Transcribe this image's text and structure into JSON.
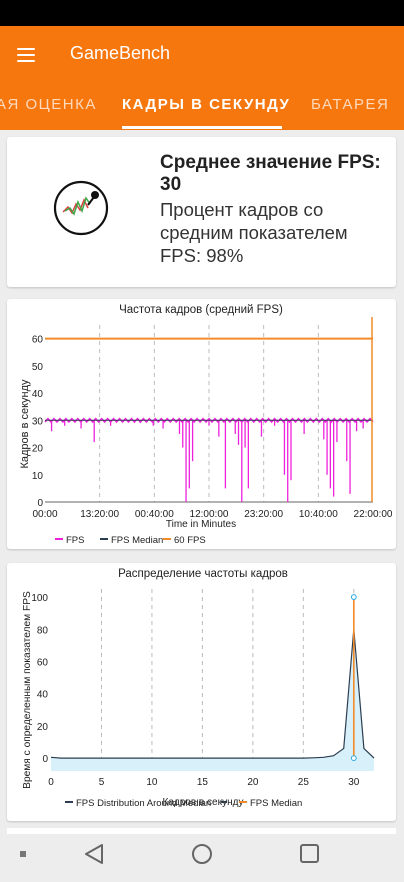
{
  "app": {
    "title": "GameBench"
  },
  "tabs": [
    {
      "label": "АЯ ОЦЕНКА"
    },
    {
      "label": "КАДРЫ В СЕКУНДУ",
      "active": true
    },
    {
      "label": "БАТАРЕЯ"
    }
  ],
  "summary": {
    "title": "Среднее значение FPS: 30",
    "text": "Процент кадров со средним показателем FPS: 98%"
  },
  "icons": {
    "menu": "menu-icon",
    "logo": "gamebench-logo-icon",
    "nav": [
      "recents-square-icon",
      "back-triangle-icon",
      "home-circle-icon",
      "overview-square-icon"
    ]
  },
  "colors": {
    "accent": "#f7770f",
    "fps": "#ee22dd",
    "median": "#2c3e50",
    "fps60": "#f28c28",
    "distribution_fill": "#d7f0fa"
  },
  "chart_data": [
    {
      "type": "line",
      "title": "Частота кадров (средний FPS)",
      "xlabel": "Time in Minutes",
      "ylabel": "Кадров в секунду",
      "x_tick_labels": [
        "00:00",
        "13:20:00",
        "00:40:00",
        "12:00:00",
        "23:20:00",
        "10:40:00",
        "22:00:00"
      ],
      "y_ticks": [
        0,
        10,
        20,
        30,
        40,
        50,
        60
      ],
      "ylim": [
        0,
        65
      ],
      "grid": true,
      "legend_position": "bottom",
      "series": [
        {
          "name": "FPS",
          "baseline": 30,
          "dips": [
            {
              "x": 0.02,
              "y": 26
            },
            {
              "x": 0.06,
              "y": 28
            },
            {
              "x": 0.11,
              "y": 27
            },
            {
              "x": 0.15,
              "y": 22
            },
            {
              "x": 0.2,
              "y": 28
            },
            {
              "x": 0.29,
              "y": 29
            },
            {
              "x": 0.33,
              "y": 28
            },
            {
              "x": 0.36,
              "y": 27
            },
            {
              "x": 0.41,
              "y": 25
            },
            {
              "x": 0.42,
              "y": 20
            },
            {
              "x": 0.43,
              "y": 0
            },
            {
              "x": 0.44,
              "y": 5
            },
            {
              "x": 0.45,
              "y": 15
            },
            {
              "x": 0.5,
              "y": 28
            },
            {
              "x": 0.53,
              "y": 24
            },
            {
              "x": 0.55,
              "y": 5
            },
            {
              "x": 0.58,
              "y": 25
            },
            {
              "x": 0.59,
              "y": 21
            },
            {
              "x": 0.6,
              "y": 0
            },
            {
              "x": 0.61,
              "y": 20
            },
            {
              "x": 0.62,
              "y": 5
            },
            {
              "x": 0.66,
              "y": 24
            },
            {
              "x": 0.7,
              "y": 28
            },
            {
              "x": 0.73,
              "y": 10
            },
            {
              "x": 0.74,
              "y": 0
            },
            {
              "x": 0.75,
              "y": 8
            },
            {
              "x": 0.79,
              "y": 25
            },
            {
              "x": 0.85,
              "y": 23
            },
            {
              "x": 0.86,
              "y": 10
            },
            {
              "x": 0.87,
              "y": 5
            },
            {
              "x": 0.88,
              "y": 2
            },
            {
              "x": 0.89,
              "y": 22
            },
            {
              "x": 0.92,
              "y": 15
            },
            {
              "x": 0.93,
              "y": 3
            },
            {
              "x": 0.95,
              "y": 26
            },
            {
              "x": 0.97,
              "y": 27
            }
          ]
        },
        {
          "name": "FPS Median",
          "value": 30
        },
        {
          "name": "60 FPS",
          "value": 60
        }
      ]
    },
    {
      "type": "area",
      "title": "Распределение частоты кадров",
      "xlabel": "Кадров в секунду",
      "ylabel": "Время с определенным показателем FPS",
      "x_ticks": [
        0,
        5,
        10,
        15,
        20,
        25,
        30
      ],
      "y_ticks": [
        0,
        20,
        40,
        60,
        80,
        100
      ],
      "xlim": [
        0,
        32
      ],
      "ylim": [
        -8,
        105
      ],
      "grid": true,
      "legend_position": "bottom",
      "series": [
        {
          "name": "FPS Distribution Around Median",
          "x": [
            0,
            1,
            5,
            10,
            15,
            20,
            25,
            26,
            27,
            28,
            29,
            30,
            31,
            32
          ],
          "y": [
            0.5,
            0,
            0,
            0,
            0,
            0,
            0,
            0.2,
            0.5,
            1.5,
            6,
            80,
            6,
            0
          ]
        },
        {
          "name": "FPS Median",
          "x": 30,
          "y_range": [
            0,
            100
          ]
        }
      ]
    }
  ]
}
